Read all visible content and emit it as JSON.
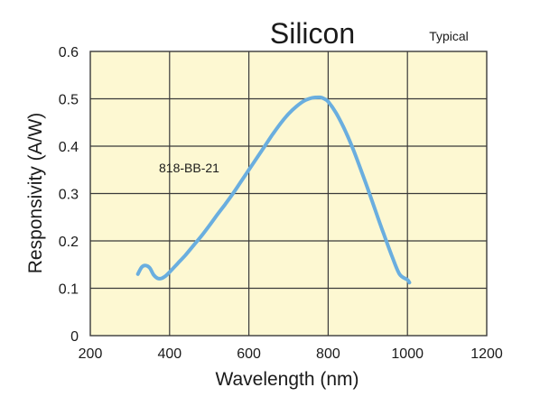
{
  "chart_data": {
    "type": "line",
    "title": "Silicon",
    "subtitle": "Typical",
    "xlabel": "Wavelength (nm)",
    "ylabel": "Responsivity (A/W)",
    "xlim": [
      200,
      1200
    ],
    "ylim": [
      0,
      0.6
    ],
    "xticks": [
      "200",
      "400",
      "600",
      "800",
      "1000",
      "1200"
    ],
    "yticks": [
      "0",
      "0.1",
      "0.2",
      "0.3",
      "0.4",
      "0.5",
      "0.6"
    ],
    "grid": true,
    "annotation": "818-BB-21",
    "colors": {
      "plot_bg": "#fdf8d2",
      "grid": "#3a3a3a",
      "line": "#6aaedf"
    },
    "series": [
      {
        "x": [
          320,
          330,
          340,
          350,
          360,
          370,
          380,
          390,
          400,
          420,
          440,
          460,
          480,
          500,
          520,
          540,
          560,
          580,
          600,
          620,
          640,
          660,
          680,
          700,
          720,
          740,
          760,
          780,
          790,
          800,
          820,
          840,
          860,
          880,
          900,
          920,
          940,
          960,
          980,
          1000,
          1005
        ],
        "y": [
          0.13,
          0.145,
          0.148,
          0.143,
          0.128,
          0.121,
          0.121,
          0.126,
          0.134,
          0.152,
          0.17,
          0.19,
          0.21,
          0.232,
          0.255,
          0.277,
          0.3,
          0.325,
          0.35,
          0.375,
          0.4,
          0.425,
          0.448,
          0.468,
          0.484,
          0.496,
          0.502,
          0.503,
          0.5,
          0.494,
          0.47,
          0.438,
          0.4,
          0.356,
          0.31,
          0.262,
          0.215,
          0.17,
          0.13,
          0.118,
          0.112
        ]
      }
    ]
  }
}
